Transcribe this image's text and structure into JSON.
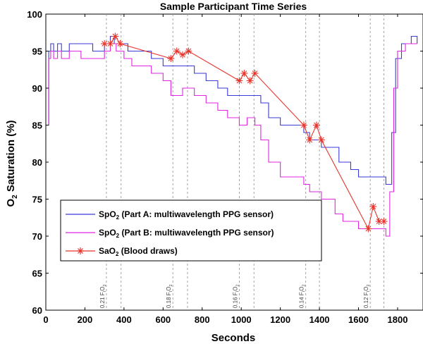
{
  "chart_data": {
    "type": "line",
    "title": "Sample Participant Time Series",
    "xlabel": "Seconds",
    "ylabel_main": "O",
    "ylabel_sub": "2",
    "ylabel_rest": " Saturation (%)",
    "xlim": [
      0,
      1930
    ],
    "ylim": [
      60,
      100
    ],
    "xticks": [
      "0",
      "200",
      "400",
      "600",
      "800",
      "1000",
      "1200",
      "1400",
      "1600",
      "1800"
    ],
    "yticks": [
      "60",
      "65",
      "70",
      "75",
      "80",
      "85",
      "90",
      "95",
      "100"
    ],
    "grid": false,
    "colors": {
      "part_a": "#3a3ad6",
      "part_b": "#e026e0",
      "sao2": "#e8332b",
      "vline": "#9a9a9a"
    },
    "phase_lines": [
      {
        "x": 310,
        "label_main": "0.21 F",
        "label_sub": "I",
        "label_tail": "O",
        "label_tail_sub": "2"
      },
      {
        "x": 385
      },
      {
        "x": 650,
        "label_main": "0.18 F",
        "label_sub": "I",
        "label_tail": "O",
        "label_tail_sub": "2"
      },
      {
        "x": 725
      },
      {
        "x": 990,
        "label_main": "0.16 F",
        "label_sub": "I",
        "label_tail": "O",
        "label_tail_sub": "2"
      },
      {
        "x": 1065
      },
      {
        "x": 1330,
        "label_main": "0.14 F",
        "label_sub": "I",
        "label_tail": "O",
        "label_tail_sub": "2"
      },
      {
        "x": 1400
      },
      {
        "x": 1660,
        "label_main": "0.12 F",
        "label_sub": "I",
        "label_tail": "O",
        "label_tail_sub": "2"
      },
      {
        "x": 1730
      }
    ],
    "series": [
      {
        "name_main": "SpO",
        "name_sub": "2",
        "name_rest": " (Part A: multiwavelength PPG sensor)",
        "style": "line-a",
        "x": [
          0,
          15,
          25,
          40,
          60,
          80,
          120,
          180,
          240,
          300,
          330,
          350,
          390,
          420,
          480,
          540,
          600,
          650,
          700,
          760,
          820,
          880,
          930,
          990,
          1030,
          1070,
          1100,
          1140,
          1200,
          1260,
          1320,
          1350,
          1380,
          1410,
          1440,
          1500,
          1560,
          1600,
          1650,
          1700,
          1740,
          1755,
          1770,
          1790,
          1820,
          1870,
          1900
        ],
        "y": [
          85,
          95,
          96,
          95,
          96,
          95,
          96,
          96,
          95,
          96,
          97,
          96,
          96,
          95,
          95,
          94,
          93,
          93,
          93,
          92,
          91,
          90,
          89,
          89,
          89,
          89,
          88,
          86,
          85,
          85,
          84,
          83,
          83,
          82,
          82,
          80,
          79,
          78,
          78,
          78,
          77,
          77,
          84,
          94,
          96,
          97,
          96
        ]
      },
      {
        "name_main": "SpO",
        "name_sub": "2",
        "name_rest": " (Part B: multiwavelength PPG sensor)",
        "style": "line-b",
        "x": [
          0,
          15,
          25,
          40,
          60,
          80,
          120,
          180,
          240,
          300,
          330,
          360,
          400,
          440,
          480,
          540,
          600,
          640,
          700,
          760,
          820,
          880,
          930,
          990,
          1030,
          1070,
          1100,
          1140,
          1200,
          1260,
          1320,
          1350,
          1380,
          1410,
          1440,
          1480,
          1520,
          1560,
          1600,
          1650,
          1700,
          1740,
          1760,
          1780,
          1800,
          1840,
          1900
        ],
        "y": [
          85,
          94,
          95,
          94,
          95,
          94,
          95,
          94,
          94,
          95,
          96,
          95,
          94,
          93,
          93,
          92,
          91,
          89,
          90,
          89,
          88,
          87,
          86,
          85,
          86,
          85,
          83,
          80,
          78,
          78,
          77,
          76,
          76,
          75,
          75,
          73,
          72,
          72,
          71,
          71,
          71,
          70,
          76,
          90,
          95,
          96,
          96
        ]
      },
      {
        "name_main": "SaO",
        "name_sub": "2",
        "name_rest": " (Blood draws)",
        "style": "draws",
        "x": [
          300,
          330,
          355,
          380,
          640,
          670,
          700,
          730,
          990,
          1015,
          1045,
          1070,
          1320,
          1350,
          1385,
          1410,
          1650,
          1675,
          1705,
          1730
        ],
        "y": [
          96,
          96,
          97,
          96,
          94,
          95,
          94.5,
          95,
          91,
          92,
          91,
          92,
          85,
          83,
          85,
          83,
          71,
          74,
          72,
          72
        ]
      }
    ]
  }
}
